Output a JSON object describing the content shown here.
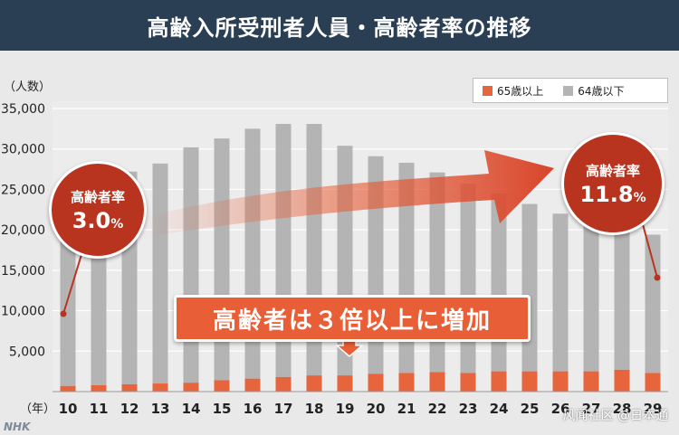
{
  "header": {
    "title": "高齢入所受刑者人員・高齢者率の推移"
  },
  "legend": {
    "senior": "65歳以上",
    "other": "64歳以下"
  },
  "colors": {
    "senior": "#e7653d",
    "other": "#b4b4b4",
    "bubble": "#b8341f",
    "header": "#2b3f54"
  },
  "bubble_left": {
    "label": "高齢者率",
    "value": "3.0",
    "unit": "%"
  },
  "bubble_right": {
    "label": "高齢者率",
    "value": "11.8",
    "unit": "%"
  },
  "callout": {
    "text": "高齢者は３倍以上に増加"
  },
  "watermark": "风闻社区 @日本通",
  "logo": "NHK",
  "chart_data": {
    "type": "bar",
    "stacked": true,
    "ylabel": "（人数）",
    "xlabel": "（年）",
    "ylim": [
      0,
      35000
    ],
    "yticks": [
      "5,000",
      "10,000",
      "15,000",
      "20,000",
      "25,000",
      "30,000",
      "35,000"
    ],
    "categories": [
      "10",
      "11",
      "12",
      "13",
      "14",
      "15",
      "16",
      "17",
      "18",
      "19",
      "20",
      "21",
      "22",
      "23",
      "24",
      "25",
      "26",
      "27",
      "28",
      "29"
    ],
    "series": [
      {
        "name": "65歳以上",
        "values": [
          700,
          800,
          900,
          1000,
          1100,
          1400,
          1600,
          1800,
          2000,
          2000,
          2200,
          2300,
          2400,
          2300,
          2500,
          2500,
          2500,
          2500,
          2700,
          2300
        ]
      },
      {
        "name": "64歳以下",
        "values": [
          22300,
          22800,
          26300,
          27200,
          29100,
          29900,
          30900,
          31300,
          31100,
          28400,
          26900,
          26000,
          24700,
          23400,
          22000,
          20700,
          19500,
          19200,
          18000,
          17100
        ]
      }
    ]
  }
}
